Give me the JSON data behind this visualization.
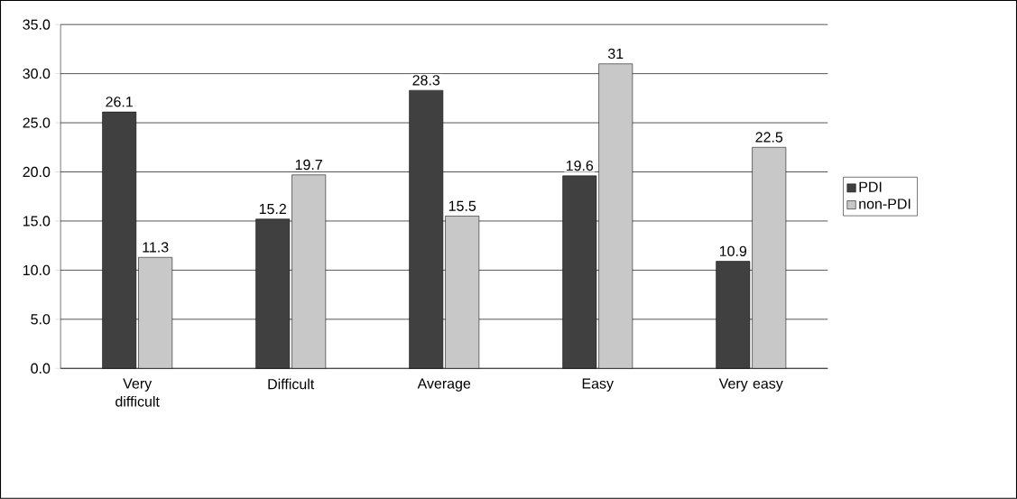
{
  "chart_data": {
    "type": "bar",
    "categories": [
      "Very difficult",
      "Difficult",
      "Average",
      "Easy",
      "Very easy"
    ],
    "series": [
      {
        "name": "PDI",
        "color": "#404040",
        "values": [
          26.1,
          15.2,
          28.3,
          19.6,
          10.9
        ]
      },
      {
        "name": "non-PDI",
        "color": "#c8c8c8",
        "values": [
          11.3,
          19.7,
          15.5,
          31,
          22.5
        ]
      }
    ],
    "ylim": [
      0,
      35
    ],
    "yticks": [
      {
        "value": 0,
        "label": "0.0"
      },
      {
        "value": 5,
        "label": "5.0"
      },
      {
        "value": 10,
        "label": "10.0"
      },
      {
        "value": 15,
        "label": "15.0"
      },
      {
        "value": 20,
        "label": "20.0"
      },
      {
        "value": 25,
        "label": "25.0"
      },
      {
        "value": 30,
        "label": "30.0"
      },
      {
        "value": 35,
        "label": "35.0"
      }
    ],
    "grid": "y",
    "legend": "right",
    "data_labels": true
  }
}
